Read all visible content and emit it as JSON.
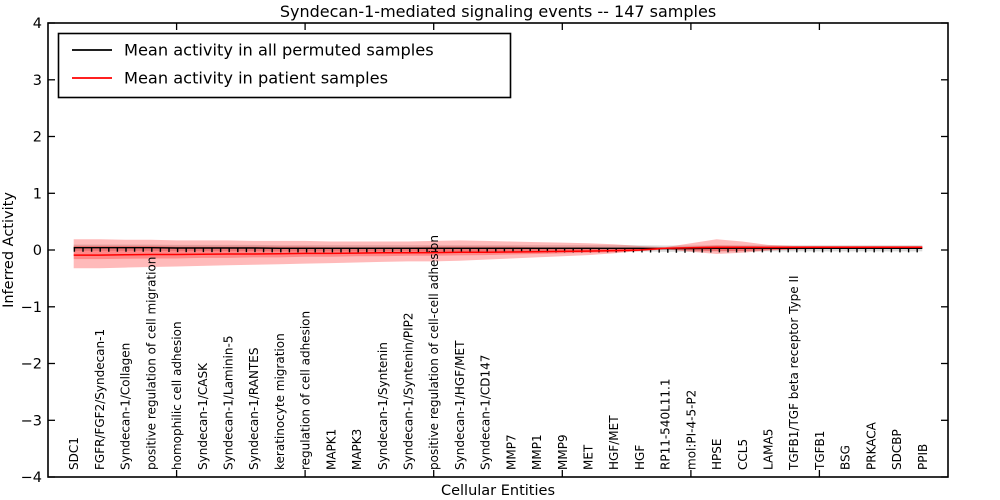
{
  "chart_data": {
    "type": "line",
    "title": "Syndecan-1-mediated signaling events -- 147 samples",
    "xlabel": "Cellular Entities",
    "ylabel": "Inferred Activity",
    "xlim": [
      0,
      35
    ],
    "ylim": [
      -4,
      4
    ],
    "grid": false,
    "legend_position": "upper left",
    "yticks": [
      4,
      3,
      2,
      1,
      0,
      -1,
      -2,
      -3,
      -4
    ],
    "ytick_labels": [
      "4",
      "3",
      "2",
      "1",
      "0",
      "−1",
      "−2",
      "−3",
      "−4"
    ],
    "xticks": [
      5,
      10,
      15,
      20,
      25,
      30
    ],
    "categories": [
      "SDC1",
      "FGFR/FGF2/Syndecan-1",
      "Syndecan-1/Collagen",
      "positive regulation of cell migration",
      "homophilic cell adhesion",
      "Syndecan-1/CASK",
      "Syndecan-1/Laminin-5",
      "Syndecan-1/RANTES",
      "keratinocyte migration",
      "regulation of cell adhesion",
      "MAPK1",
      "MAPK3",
      "Syndecan-1/Syntenin",
      "Syndecan-1/Syntenin/PIP2",
      "positive regulation of cell-cell adhesion",
      "Syndecan-1/HGF/MET",
      "Syndecan-1/CD147",
      "MMP7",
      "MMP1",
      "MMP9",
      "MET",
      "HGF/MET",
      "HGF",
      "RP11-540L11.1",
      "mol:PI-4-5-P2",
      "HPSE",
      "CCL5",
      "LAMA5",
      "TGFB1/TGF beta receptor Type II",
      "TGFB1",
      "BSG",
      "PRKACA",
      "SDCBP",
      "PPIB"
    ],
    "series": [
      {
        "name": "Mean activity in all permuted samples",
        "color": "#000000",
        "values": [
          0.04,
          0.04,
          0.04,
          0.04,
          0.035,
          0.035,
          0.035,
          0.035,
          0.03,
          0.03,
          0.03,
          0.03,
          0.03,
          0.03,
          0.03,
          0.03,
          0.03,
          0.03,
          0.03,
          0.03,
          0.03,
          0.03,
          0.03,
          0.025,
          0.025,
          0.03,
          0.03,
          0.03,
          0.03,
          0.03,
          0.03,
          0.03,
          0.03,
          0.03
        ]
      },
      {
        "name": "Mean activity in patient samples",
        "color": "#ff0000",
        "values": [
          -0.09,
          -0.09,
          -0.085,
          -0.08,
          -0.08,
          -0.075,
          -0.07,
          -0.07,
          -0.065,
          -0.06,
          -0.06,
          -0.055,
          -0.05,
          -0.05,
          -0.045,
          -0.04,
          -0.04,
          -0.035,
          -0.03,
          -0.025,
          -0.02,
          -0.01,
          0.0,
          0.03,
          0.04,
          0.045,
          0.045,
          0.045,
          0.05,
          0.05,
          0.05,
          0.05,
          0.05,
          0.05
        ]
      }
    ],
    "patient_band": {
      "upper": [
        0.19,
        0.19,
        0.18,
        0.18,
        0.17,
        0.17,
        0.17,
        0.16,
        0.16,
        0.16,
        0.15,
        0.15,
        0.15,
        0.15,
        0.16,
        0.17,
        0.16,
        0.15,
        0.14,
        0.13,
        0.12,
        0.1,
        0.07,
        0.05,
        0.12,
        0.19,
        0.15,
        0.09,
        0.07,
        0.07,
        0.07,
        0.07,
        0.07,
        0.07
      ],
      "lower": [
        -0.32,
        -0.32,
        -0.31,
        -0.3,
        -0.29,
        -0.28,
        -0.27,
        -0.26,
        -0.25,
        -0.24,
        -0.23,
        -0.22,
        -0.21,
        -0.2,
        -0.2,
        -0.19,
        -0.17,
        -0.15,
        -0.13,
        -0.11,
        -0.09,
        -0.06,
        -0.02,
        0.01,
        -0.03,
        -0.07,
        -0.05,
        -0.01,
        0.01,
        0.02,
        0.02,
        0.02,
        0.02,
        0.02
      ]
    },
    "patient_inner_band": {
      "upper": [
        0.07,
        0.07,
        0.07,
        0.07,
        0.06,
        0.06,
        0.06,
        0.06,
        0.06,
        0.06,
        0.05,
        0.05,
        0.05,
        0.05,
        0.06,
        0.06,
        0.06,
        0.06,
        0.05,
        0.05,
        0.05,
        0.04,
        0.04,
        0.04,
        0.06,
        0.08,
        0.07,
        0.06,
        0.06,
        0.06,
        0.06,
        0.06,
        0.06,
        0.06
      ],
      "lower": [
        -0.16,
        -0.16,
        -0.155,
        -0.15,
        -0.15,
        -0.14,
        -0.14,
        -0.13,
        -0.13,
        -0.12,
        -0.12,
        -0.11,
        -0.11,
        -0.1,
        -0.1,
        -0.095,
        -0.09,
        -0.08,
        -0.07,
        -0.06,
        -0.05,
        -0.04,
        -0.02,
        0.01,
        -0.01,
        -0.02,
        -0.02,
        0.0,
        0.01,
        0.02,
        0.02,
        0.02,
        0.02,
        0.02
      ]
    },
    "permuted_band_halfwidth": 0.055,
    "colors": {
      "patient_band_fill": "#ff0000",
      "patient_band_opacity": 0.27,
      "permuted_band_fill": "#aaaaaa",
      "permuted_band_opacity": 0.45,
      "axis": "#000000"
    },
    "legend": {
      "entries": [
        {
          "label": "Mean activity in all permuted samples",
          "color": "#000000"
        },
        {
          "label": "Mean activity in patient samples",
          "color": "#ff0000"
        }
      ]
    }
  }
}
